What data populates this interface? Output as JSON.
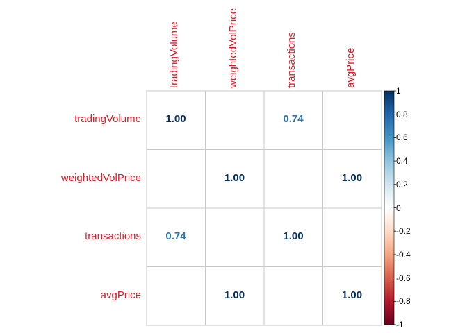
{
  "chart_data": {
    "type": "heatmap",
    "title": "",
    "row_labels": [
      "tradingVolume",
      "weightedVolPrice",
      "transactions",
      "avgPrice"
    ],
    "col_labels": [
      "tradingVolume",
      "weightedVolPrice",
      "transactions",
      "avgPrice"
    ],
    "values": [
      [
        1.0,
        0.0,
        0.74,
        0.0
      ],
      [
        0.0,
        1.0,
        0.0,
        1.0
      ],
      [
        0.74,
        0.0,
        1.0,
        0.0
      ],
      [
        0.0,
        1.0,
        0.0,
        1.0
      ]
    ],
    "value_labels": [
      [
        "1.00",
        "",
        "0.74",
        ""
      ],
      [
        "",
        "1.00",
        "",
        "1.00"
      ],
      [
        "0.74",
        "",
        "1.00",
        ""
      ],
      [
        "",
        "1.00",
        "",
        "1.00"
      ]
    ],
    "colorbar": {
      "range": [
        -1,
        1
      ],
      "ticks": [
        "1",
        "0.8",
        "0.6",
        "0.4",
        "0.2",
        "0",
        "-0.2",
        "-0.4",
        "-0.6",
        "-0.8",
        "-1"
      ]
    },
    "colors": {
      "label": "#e8141e",
      "grid": "#c8c8c8",
      "scale": [
        "#67001f",
        "#b2182b",
        "#d6604d",
        "#f4a582",
        "#fddbc7",
        "#ffffff",
        "#d1e5f0",
        "#92c5de",
        "#4393c3",
        "#2166ac",
        "#053061"
      ]
    }
  }
}
